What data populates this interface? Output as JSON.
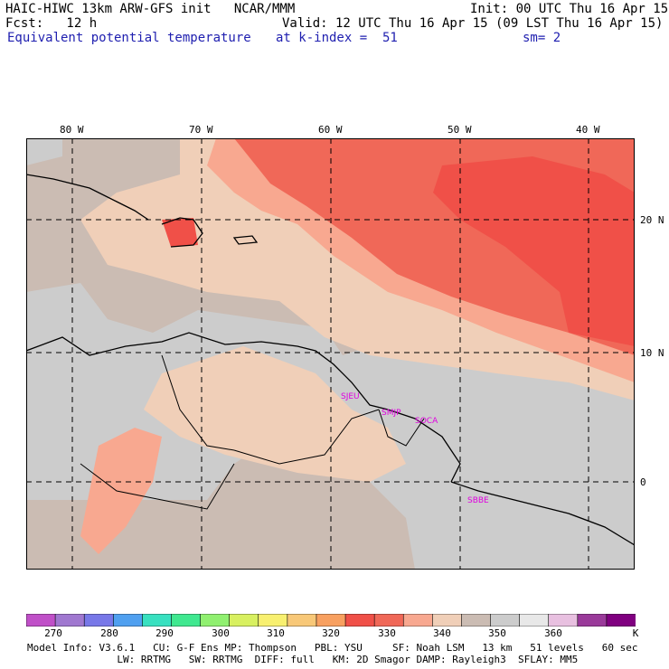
{
  "header": {
    "model": "HAIC-HIWC 13km ARW-GFS init   NCAR/MMM",
    "init": "Init: 00 UTC Thu 16 Apr 15",
    "fcst": "Fcst:   12 h",
    "valid": "Valid: 12 UTC Thu 16 Apr 15 (09 LST Thu 16 Apr 15)",
    "field": "Equivalent potential temperature",
    "level": "at k-index =  51",
    "smooth": "sm= 2"
  },
  "axes": {
    "lon_labels": [
      "80 W",
      "70 W",
      "60 W",
      "50 W",
      "40 W"
    ],
    "lat_labels": [
      "20 N",
      "10 N",
      "0"
    ]
  },
  "stations": [
    "SJEU",
    "SMJP",
    "SOCA",
    "SBBE"
  ],
  "colorbar": {
    "labels": [
      "270",
      "280",
      "290",
      "300",
      "310",
      "320",
      "330",
      "340",
      "350",
      "360"
    ],
    "unit": "K",
    "colors": [
      "#c050c8",
      "#a078d0",
      "#7878e8",
      "#50a0f0",
      "#38e0c0",
      "#40e890",
      "#90f070",
      "#d8f060",
      "#f8f070",
      "#f8c878",
      "#f8a060",
      "#f05048",
      "#f06858",
      "#f8a890",
      "#f0cfb8",
      "#cbbcb3",
      "#cccccc",
      "#e8e8e8",
      "#e8c0e0",
      "#9a3a9a",
      "#800080"
    ]
  },
  "footer": {
    "line1": "Model Info: V3.6.1   CU: G-F Ens MP: Thompson   PBL: YSU     SF: Noah LSM   13 km   51 levels   60 sec",
    "line2": "               LW: RRTMG   SW: RRTMG  DIFF: full   KM: 2D Smagor DAMP: Rayleigh3  SFLAY: MM5"
  }
}
